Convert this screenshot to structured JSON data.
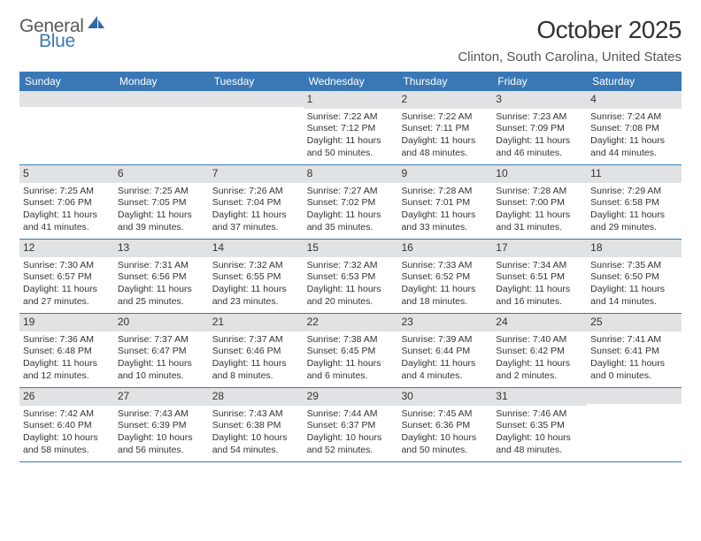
{
  "brand": {
    "word1": "General",
    "word2": "Blue",
    "icon_color": "#2f6aa8"
  },
  "title": "October 2025",
  "location": "Clinton, South Carolina, United States",
  "colors": {
    "header_bar": "#3a78b5",
    "daynum_bg": "#e1e2e3",
    "text": "#333333",
    "border": "#3a78b5"
  },
  "weekdays": [
    "Sunday",
    "Monday",
    "Tuesday",
    "Wednesday",
    "Thursday",
    "Friday",
    "Saturday"
  ],
  "weeks": [
    [
      null,
      null,
      null,
      {
        "n": "1",
        "sunrise": "7:22 AM",
        "sunset": "7:12 PM",
        "dl": "11 hours and 50 minutes."
      },
      {
        "n": "2",
        "sunrise": "7:22 AM",
        "sunset": "7:11 PM",
        "dl": "11 hours and 48 minutes."
      },
      {
        "n": "3",
        "sunrise": "7:23 AM",
        "sunset": "7:09 PM",
        "dl": "11 hours and 46 minutes."
      },
      {
        "n": "4",
        "sunrise": "7:24 AM",
        "sunset": "7:08 PM",
        "dl": "11 hours and 44 minutes."
      }
    ],
    [
      {
        "n": "5",
        "sunrise": "7:25 AM",
        "sunset": "7:06 PM",
        "dl": "11 hours and 41 minutes."
      },
      {
        "n": "6",
        "sunrise": "7:25 AM",
        "sunset": "7:05 PM",
        "dl": "11 hours and 39 minutes."
      },
      {
        "n": "7",
        "sunrise": "7:26 AM",
        "sunset": "7:04 PM",
        "dl": "11 hours and 37 minutes."
      },
      {
        "n": "8",
        "sunrise": "7:27 AM",
        "sunset": "7:02 PM",
        "dl": "11 hours and 35 minutes."
      },
      {
        "n": "9",
        "sunrise": "7:28 AM",
        "sunset": "7:01 PM",
        "dl": "11 hours and 33 minutes."
      },
      {
        "n": "10",
        "sunrise": "7:28 AM",
        "sunset": "7:00 PM",
        "dl": "11 hours and 31 minutes."
      },
      {
        "n": "11",
        "sunrise": "7:29 AM",
        "sunset": "6:58 PM",
        "dl": "11 hours and 29 minutes."
      }
    ],
    [
      {
        "n": "12",
        "sunrise": "7:30 AM",
        "sunset": "6:57 PM",
        "dl": "11 hours and 27 minutes."
      },
      {
        "n": "13",
        "sunrise": "7:31 AM",
        "sunset": "6:56 PM",
        "dl": "11 hours and 25 minutes."
      },
      {
        "n": "14",
        "sunrise": "7:32 AM",
        "sunset": "6:55 PM",
        "dl": "11 hours and 23 minutes."
      },
      {
        "n": "15",
        "sunrise": "7:32 AM",
        "sunset": "6:53 PM",
        "dl": "11 hours and 20 minutes."
      },
      {
        "n": "16",
        "sunrise": "7:33 AM",
        "sunset": "6:52 PM",
        "dl": "11 hours and 18 minutes."
      },
      {
        "n": "17",
        "sunrise": "7:34 AM",
        "sunset": "6:51 PM",
        "dl": "11 hours and 16 minutes."
      },
      {
        "n": "18",
        "sunrise": "7:35 AM",
        "sunset": "6:50 PM",
        "dl": "11 hours and 14 minutes."
      }
    ],
    [
      {
        "n": "19",
        "sunrise": "7:36 AM",
        "sunset": "6:48 PM",
        "dl": "11 hours and 12 minutes."
      },
      {
        "n": "20",
        "sunrise": "7:37 AM",
        "sunset": "6:47 PM",
        "dl": "11 hours and 10 minutes."
      },
      {
        "n": "21",
        "sunrise": "7:37 AM",
        "sunset": "6:46 PM",
        "dl": "11 hours and 8 minutes."
      },
      {
        "n": "22",
        "sunrise": "7:38 AM",
        "sunset": "6:45 PM",
        "dl": "11 hours and 6 minutes."
      },
      {
        "n": "23",
        "sunrise": "7:39 AM",
        "sunset": "6:44 PM",
        "dl": "11 hours and 4 minutes."
      },
      {
        "n": "24",
        "sunrise": "7:40 AM",
        "sunset": "6:42 PM",
        "dl": "11 hours and 2 minutes."
      },
      {
        "n": "25",
        "sunrise": "7:41 AM",
        "sunset": "6:41 PM",
        "dl": "11 hours and 0 minutes."
      }
    ],
    [
      {
        "n": "26",
        "sunrise": "7:42 AM",
        "sunset": "6:40 PM",
        "dl": "10 hours and 58 minutes."
      },
      {
        "n": "27",
        "sunrise": "7:43 AM",
        "sunset": "6:39 PM",
        "dl": "10 hours and 56 minutes."
      },
      {
        "n": "28",
        "sunrise": "7:43 AM",
        "sunset": "6:38 PM",
        "dl": "10 hours and 54 minutes."
      },
      {
        "n": "29",
        "sunrise": "7:44 AM",
        "sunset": "6:37 PM",
        "dl": "10 hours and 52 minutes."
      },
      {
        "n": "30",
        "sunrise": "7:45 AM",
        "sunset": "6:36 PM",
        "dl": "10 hours and 50 minutes."
      },
      {
        "n": "31",
        "sunrise": "7:46 AM",
        "sunset": "6:35 PM",
        "dl": "10 hours and 48 minutes."
      },
      null
    ]
  ],
  "labels": {
    "sunrise": "Sunrise:",
    "sunset": "Sunset:",
    "daylight": "Daylight:"
  }
}
